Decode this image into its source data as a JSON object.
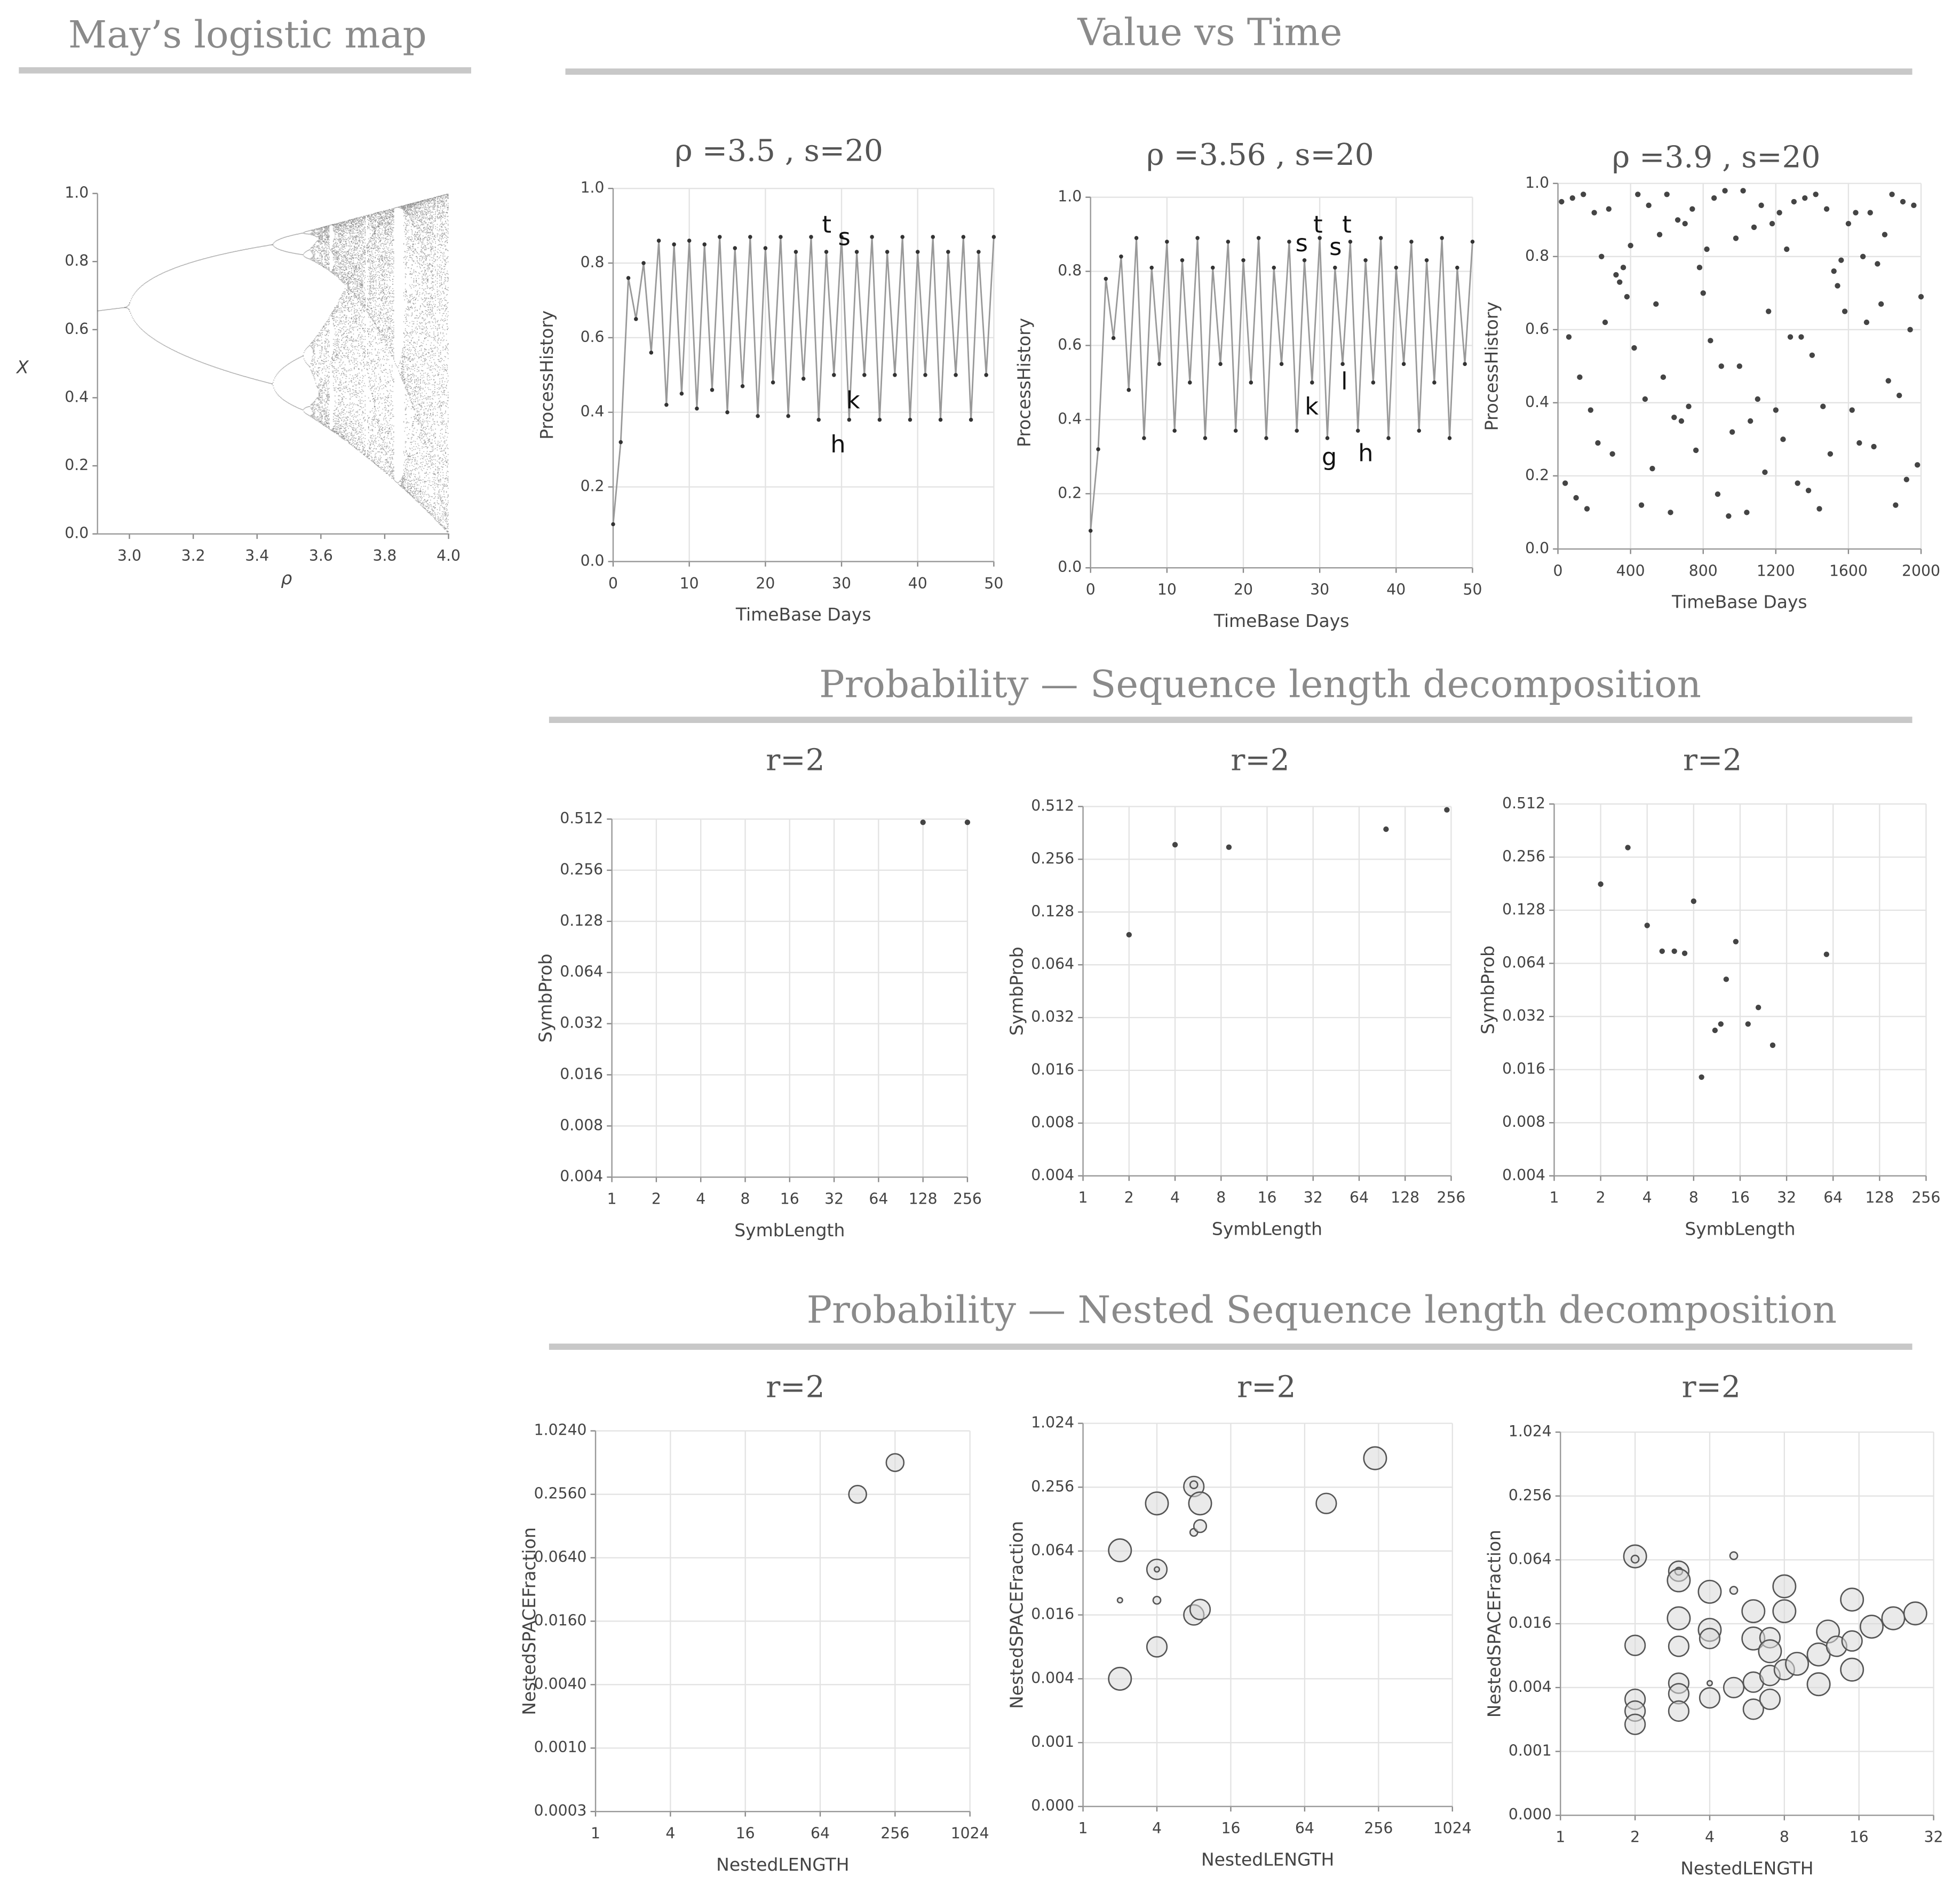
{
  "headings": [
    "May’s logistic map",
    "Value vs Time",
    "Probability — Sequence length decomposition",
    "Probability — Nested Sequence length decomposition"
  ],
  "chart_data": [
    {
      "type": "bifurcation",
      "xlabel": "ρ",
      "ylabel": "X",
      "xlim": [
        2.9,
        4.0
      ],
      "ylim": [
        0,
        1
      ],
      "color": "#000000",
      "grid": false,
      "xticks": [
        {
          "value": 3,
          "label": "3.0"
        },
        {
          "value": 3.2,
          "label": "3.2"
        },
        {
          "value": 3.4,
          "label": "3.4"
        },
        {
          "value": 3.6,
          "label": "3.6"
        },
        {
          "value": 3.8,
          "label": "3.8"
        },
        {
          "value": 4,
          "label": "4.0"
        }
      ],
      "yticks": [
        {
          "value": 0,
          "label": "0.0"
        },
        {
          "value": 0.2,
          "label": "0.2"
        },
        {
          "value": 0.4,
          "label": "0.4"
        },
        {
          "value": 0.6,
          "label": "0.6"
        },
        {
          "value": 0.8,
          "label": "0.8"
        },
        {
          "value": 1,
          "label": "1.0"
        }
      ]
    },
    {
      "type": "line",
      "title": "ρ =3.5 , s=20",
      "xlabel": "TimeBase Days",
      "ylabel": "ProcessHistory",
      "color": "#999999",
      "grid": true,
      "xlim": [
        0,
        50
      ],
      "ylim": [
        0,
        1
      ],
      "xticks": [
        0,
        10,
        20,
        30,
        40,
        50
      ],
      "yticks": [
        {
          "value": 0,
          "label": "0.0"
        },
        {
          "value": 0.2,
          "label": "0.2"
        },
        {
          "value": 0.4,
          "label": "0.4"
        },
        {
          "value": 0.6,
          "label": "0.6"
        },
        {
          "value": 0.8,
          "label": "0.8"
        },
        {
          "value": 1,
          "label": "1.0"
        }
      ],
      "annotations": [
        "t",
        "s",
        "k",
        "h"
      ],
      "x": [
        0,
        1,
        2,
        3,
        4,
        5,
        6,
        7,
        8,
        9,
        10,
        11,
        12,
        13,
        14,
        15,
        16,
        17,
        18,
        19,
        20,
        21,
        22,
        23,
        24,
        25,
        26,
        27,
        28,
        29,
        30,
        31,
        32,
        33,
        34,
        35,
        36,
        37,
        38,
        39,
        40,
        41,
        42,
        43,
        44,
        45,
        46,
        47,
        48,
        49,
        50
      ],
      "values": [
        0.1,
        0.32,
        0.76,
        0.65,
        0.8,
        0.56,
        0.86,
        0.42,
        0.85,
        0.45,
        0.86,
        0.41,
        0.85,
        0.46,
        0.87,
        0.4,
        0.84,
        0.47,
        0.87,
        0.39,
        0.84,
        0.48,
        0.87,
        0.39,
        0.83,
        0.49,
        0.87,
        0.38,
        0.83,
        0.5,
        0.87,
        0.38,
        0.83,
        0.5,
        0.87,
        0.38,
        0.83,
        0.5,
        0.87,
        0.38,
        0.83,
        0.5,
        0.87,
        0.38,
        0.83,
        0.5,
        0.87,
        0.38,
        0.83,
        0.5,
        0.87
      ]
    },
    {
      "type": "line",
      "title": "ρ =3.56 , s=20",
      "xlabel": "TimeBase Days",
      "ylabel": "ProcessHistory",
      "color": "#999999",
      "grid": true,
      "xlim": [
        0,
        50
      ],
      "ylim": [
        0,
        1
      ],
      "xticks": [
        0,
        10,
        20,
        30,
        40,
        50
      ],
      "yticks": [
        {
          "value": 0,
          "label": "0.0"
        },
        {
          "value": 0.2,
          "label": "0.2"
        },
        {
          "value": 0.4,
          "label": "0.4"
        },
        {
          "value": 0.6,
          "label": "0.6"
        },
        {
          "value": 0.8,
          "label": "0.8"
        },
        {
          "value": 1,
          "label": "1.0"
        }
      ],
      "annotations": [
        "s",
        "t",
        "s",
        "t",
        "k",
        "l",
        "g",
        "h"
      ],
      "x": [
        0,
        1,
        2,
        3,
        4,
        5,
        6,
        7,
        8,
        9,
        10,
        11,
        12,
        13,
        14,
        15,
        16,
        17,
        18,
        19,
        20,
        21,
        22,
        23,
        24,
        25,
        26,
        27,
        28,
        29,
        30,
        31,
        32,
        33,
        34,
        35,
        36,
        37,
        38,
        39,
        40,
        41,
        42,
        43,
        44,
        45,
        46,
        47,
        48,
        49,
        50
      ],
      "values": [
        0.1,
        0.32,
        0.78,
        0.62,
        0.84,
        0.48,
        0.89,
        0.35,
        0.81,
        0.55,
        0.88,
        0.37,
        0.83,
        0.5,
        0.89,
        0.35,
        0.81,
        0.55,
        0.88,
        0.37,
        0.83,
        0.5,
        0.89,
        0.35,
        0.81,
        0.55,
        0.88,
        0.37,
        0.83,
        0.5,
        0.89,
        0.35,
        0.81,
        0.55,
        0.88,
        0.37,
        0.83,
        0.5,
        0.89,
        0.35,
        0.81,
        0.55,
        0.88,
        0.37,
        0.83,
        0.5,
        0.89,
        0.35,
        0.81,
        0.55,
        0.88
      ]
    },
    {
      "type": "scatter",
      "title": "ρ =3.9 , s=20",
      "xlabel": "TimeBase Days",
      "ylabel": "ProcessHistory",
      "color": "#444444",
      "grid": true,
      "xlim": [
        0,
        2000
      ],
      "ylim": [
        0,
        1
      ],
      "xticks": [
        0,
        400,
        800,
        1200,
        1600,
        2000
      ],
      "yticks": [
        {
          "value": 0,
          "label": "0.0"
        },
        {
          "value": 0.2,
          "label": "0.2"
        },
        {
          "value": 0.4,
          "label": "0.4"
        },
        {
          "value": 0.6,
          "label": "0.6"
        },
        {
          "value": 0.8,
          "label": "0.8"
        },
        {
          "value": 1,
          "label": "1.0"
        }
      ],
      "x": [
        20,
        40,
        60,
        80,
        100,
        120,
        140,
        160,
        180,
        200,
        220,
        240,
        260,
        280,
        300,
        320,
        340,
        360,
        380,
        400,
        420,
        440,
        460,
        480,
        500,
        520,
        540,
        560,
        580,
        600,
        620,
        640,
        660,
        680,
        700,
        720,
        740,
        760,
        780,
        800,
        820,
        840,
        860,
        880,
        900,
        920,
        940,
        960,
        980,
        1000,
        1020,
        1040,
        1060,
        1080,
        1100,
        1120,
        1140,
        1160,
        1180,
        1200,
        1220,
        1240,
        1260,
        1280,
        1300,
        1320,
        1340,
        1360,
        1380,
        1400,
        1420,
        1440,
        1460,
        1480,
        1500,
        1520,
        1540,
        1560,
        1580,
        1600,
        1620,
        1640,
        1660,
        1680,
        1700,
        1720,
        1740,
        1760,
        1780,
        1800,
        1820,
        1840,
        1860,
        1880,
        1900,
        1920,
        1940,
        1960,
        1980,
        2000
      ],
      "values": [
        0.95,
        0.18,
        0.58,
        0.96,
        0.14,
        0.47,
        0.97,
        0.11,
        0.38,
        0.92,
        0.29,
        0.8,
        0.62,
        0.93,
        0.26,
        0.75,
        0.73,
        0.77,
        0.69,
        0.83,
        0.55,
        0.97,
        0.12,
        0.41,
        0.94,
        0.22,
        0.67,
        0.86,
        0.47,
        0.97,
        0.1,
        0.36,
        0.9,
        0.35,
        0.89,
        0.39,
        0.93,
        0.27,
        0.77,
        0.7,
        0.82,
        0.57,
        0.96,
        0.15,
        0.5,
        0.98,
        0.09,
        0.32,
        0.85,
        0.5,
        0.98,
        0.1,
        0.35,
        0.88,
        0.41,
        0.94,
        0.21,
        0.65,
        0.89,
        0.38,
        0.92,
        0.3,
        0.82,
        0.58,
        0.95,
        0.18,
        0.58,
        0.96,
        0.16,
        0.53,
        0.97,
        0.11,
        0.39,
        0.93,
        0.26,
        0.76,
        0.72,
        0.79,
        0.65,
        0.89,
        0.38,
        0.92,
        0.29,
        0.8,
        0.62,
        0.92,
        0.28,
        0.78,
        0.67,
        0.86,
        0.46,
        0.97,
        0.12,
        0.42,
        0.95,
        0.19,
        0.6,
        0.94,
        0.23,
        0.69
      ]
    },
    {
      "type": "scatter",
      "title": "r=2",
      "xlabel": "SymbLength",
      "ylabel": "SymbProb",
      "color": "#444444",
      "grid": true,
      "xlog": true,
      "ylog": true,
      "xlim": [
        1,
        256
      ],
      "ylim": [
        0.004,
        0.512
      ],
      "xticks": [
        1,
        2,
        4,
        8,
        16,
        32,
        64,
        128,
        256
      ],
      "yticks": [
        0.004,
        0.008,
        0.016,
        0.032,
        0.064,
        0.128,
        0.256,
        0.512
      ],
      "x": [
        128,
        256
      ],
      "values": [
        0.49,
        0.49
      ]
    },
    {
      "type": "scatter",
      "title": "r=2",
      "xlabel": "SymbLength",
      "ylabel": "SymbProb",
      "color": "#444444",
      "grid": true,
      "xlog": true,
      "ylog": true,
      "xlim": [
        1,
        256
      ],
      "ylim": [
        0.004,
        0.512
      ],
      "xticks": [
        1,
        2,
        4,
        8,
        16,
        32,
        64,
        128,
        256
      ],
      "yticks": [
        0.004,
        0.008,
        0.016,
        0.032,
        0.064,
        0.128,
        0.256,
        0.512
      ],
      "x": [
        2,
        4,
        9,
        96,
        240
      ],
      "values": [
        0.095,
        0.31,
        0.3,
        0.38,
        0.49
      ]
    },
    {
      "type": "scatter",
      "title": "r=2",
      "xlabel": "SymbLength",
      "ylabel": "SymbProb",
      "color": "#444444",
      "grid": true,
      "xlog": true,
      "ylog": true,
      "xlim": [
        1,
        256
      ],
      "ylim": [
        0.004,
        0.512
      ],
      "xticks": [
        1,
        2,
        4,
        8,
        16,
        32,
        64,
        128,
        256
      ],
      "yticks": [
        0.004,
        0.008,
        0.016,
        0.032,
        0.064,
        0.128,
        0.256,
        0.512
      ],
      "x": [
        2,
        3,
        4,
        5,
        6,
        7,
        8,
        9,
        11,
        12,
        13,
        15,
        18,
        21,
        26,
        58
      ],
      "values": [
        0.18,
        0.29,
        0.105,
        0.075,
        0.075,
        0.073,
        0.144,
        0.0145,
        0.0267,
        0.029,
        0.052,
        0.085,
        0.029,
        0.036,
        0.022,
        0.072
      ]
    },
    {
      "type": "bubble",
      "title": "r=2",
      "xlabel": "NestedLENGTH",
      "ylabel": "NestedSPACEFraction",
      "color": "#d9d9d9",
      "grid": true,
      "xlog": true,
      "ylog": true,
      "xlim": [
        1,
        1024
      ],
      "ylim": [
        0.00025,
        1.024
      ],
      "xticks": [
        1,
        4,
        16,
        64,
        256,
        1024
      ],
      "yticks": [
        {
          "value": 0.00025,
          "label": "0.0003"
        },
        {
          "value": 0.001,
          "label": "0.0010"
        },
        {
          "value": 0.004,
          "label": "0.0040"
        },
        {
          "value": 0.016,
          "label": "0.0160"
        },
        {
          "value": 0.064,
          "label": "0.0640"
        },
        {
          "value": 0.256,
          "label": "0.2560"
        },
        {
          "value": 1.024,
          "label": "1.0240"
        }
      ],
      "x": [
        128,
        256
      ],
      "values": [
        0.256,
        0.512
      ],
      "sizes": [
        7,
        7
      ]
    },
    {
      "type": "bubble",
      "title": "r=2",
      "xlabel": "NestedLENGTH",
      "ylabel": "NestedSPACEFraction",
      "color": "#d9d9d9",
      "grid": true,
      "xlog": true,
      "ylog": true,
      "xlim": [
        1,
        1024
      ],
      "ylim": [
        0.00025,
        1.024
      ],
      "xticks": [
        1,
        4,
        16,
        64,
        256,
        1024
      ],
      "yticks": [
        {
          "value": 0.00025,
          "label": "0.000"
        },
        0.001,
        0.004,
        0.016,
        0.064,
        0.256,
        1.024
      ],
      "x": [
        2,
        2,
        2,
        4,
        4,
        4,
        4,
        4,
        8,
        8,
        9,
        8,
        9,
        8,
        9,
        96,
        240
      ],
      "values": [
        0.065,
        0.022,
        0.004,
        0.18,
        0.043,
        0.043,
        0.022,
        0.008,
        0.26,
        0.27,
        0.18,
        0.096,
        0.11,
        0.016,
        0.018,
        0.18,
        0.48
      ],
      "sizes": [
        9,
        2,
        9,
        9,
        8,
        2,
        3,
        8,
        8,
        3,
        9,
        3,
        5,
        8,
        8,
        8,
        9
      ]
    },
    {
      "type": "bubble",
      "title": "r=2",
      "xlabel": "NestedLENGTH",
      "ylabel": "NestedSPACEFraction",
      "color": "#d9d9d9",
      "grid": true,
      "xlog": true,
      "ylog": true,
      "xlim": [
        1,
        32
      ],
      "ylim": [
        0.00025,
        1.024
      ],
      "xticks": [
        1,
        2,
        4,
        8,
        16,
        32
      ],
      "yticks": [
        {
          "value": 0.00025,
          "label": "0.000"
        },
        0.001,
        0.004,
        0.016,
        0.064,
        0.256,
        1.024
      ],
      "x": [
        2,
        2,
        2,
        2,
        2,
        2,
        3,
        3,
        3,
        3,
        3,
        3,
        3,
        3,
        4,
        4,
        4,
        4,
        4,
        5,
        5,
        5,
        6,
        6,
        6,
        6,
        7,
        7,
        7,
        7,
        8,
        8,
        8,
        9,
        11,
        11,
        12,
        13,
        15,
        15,
        15,
        18,
        22,
        27
      ],
      "values": [
        0.069,
        0.065,
        0.01,
        0.0031,
        0.0024,
        0.0018,
        0.05,
        0.05,
        0.041,
        0.018,
        0.0098,
        0.0044,
        0.0035,
        0.0024,
        0.032,
        0.014,
        0.0116,
        0.0044,
        0.0032,
        0.004,
        0.07,
        0.033,
        0.021,
        0.0116,
        0.0045,
        0.0025,
        0.0118,
        0.0088,
        0.0052,
        0.0031,
        0.036,
        0.021,
        0.0059,
        0.0067,
        0.0082,
        0.0043,
        0.0135,
        0.0098,
        0.011,
        0.0059,
        0.027,
        0.015,
        0.018,
        0.02
      ],
      "sizes": [
        9,
        3,
        8,
        8,
        8,
        8,
        8,
        3,
        9,
        9,
        8,
        8,
        8,
        8,
        9,
        9,
        8,
        2,
        8,
        8,
        3,
        3,
        9,
        9,
        8,
        8,
        8,
        9,
        8,
        8,
        9,
        9,
        8,
        9,
        9,
        9,
        9,
        8,
        8,
        9,
        9,
        9,
        9,
        9
      ]
    }
  ]
}
